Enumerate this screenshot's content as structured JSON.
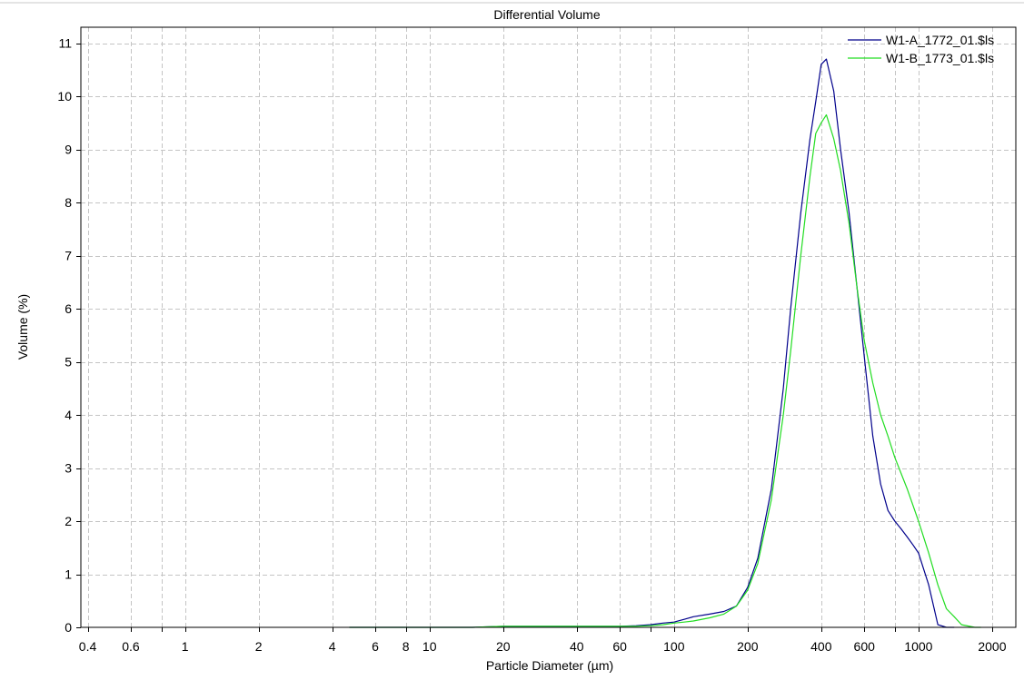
{
  "chart_data": {
    "type": "line",
    "title": "Differential Volume",
    "xlabel": "Particle Diameter (µm)",
    "ylabel": "Volume (%)",
    "x_scale": "log",
    "xlim": [
      0.375,
      2500
    ],
    "ylim": [
      0,
      11.3
    ],
    "x_ticks": [
      0.4,
      0.6,
      1,
      2,
      4,
      6,
      8,
      10,
      20,
      40,
      60,
      100,
      200,
      400,
      600,
      1000,
      2000
    ],
    "x_tick_labels": [
      "0.4",
      "0.6",
      "1",
      "2",
      "4",
      "6",
      "8",
      "10",
      "20",
      "40",
      "60",
      "100",
      "200",
      "400",
      "600",
      "1000",
      "2000"
    ],
    "x_gridlines": [
      0.4,
      0.6,
      0.8,
      1,
      2,
      4,
      6,
      8,
      10,
      20,
      40,
      60,
      80,
      100,
      200,
      400,
      600,
      800,
      1000,
      2000
    ],
    "y_ticks": [
      0,
      1,
      2,
      3,
      4,
      5,
      6,
      7,
      8,
      9,
      10,
      11
    ],
    "grid": true,
    "legend_position": "top-right",
    "series": [
      {
        "name": "W1-A_1772_01.$ls",
        "color": "#00008b",
        "x": [
          4.7,
          10,
          15,
          20,
          30,
          40,
          50,
          60,
          70,
          80,
          90,
          100,
          110,
          120,
          140,
          160,
          180,
          200,
          220,
          250,
          280,
          300,
          330,
          360,
          380,
          400,
          420,
          450,
          480,
          520,
          560,
          600,
          650,
          700,
          750,
          800,
          850,
          900,
          950,
          1000,
          1100,
          1200,
          1300,
          1400
        ],
        "y": [
          0.0,
          0.0,
          0.0,
          0.02,
          0.02,
          0.02,
          0.02,
          0.02,
          0.03,
          0.05,
          0.08,
          0.1,
          0.15,
          0.2,
          0.25,
          0.3,
          0.4,
          0.75,
          1.3,
          2.6,
          4.5,
          6.0,
          7.8,
          9.2,
          9.9,
          10.6,
          10.7,
          10.1,
          9.0,
          7.8,
          6.4,
          5.1,
          3.6,
          2.7,
          2.2,
          2.0,
          1.85,
          1.7,
          1.55,
          1.4,
          0.8,
          0.05,
          0.0,
          0.0
        ]
      },
      {
        "name": "W1-B_1773_01.$ls",
        "color": "#22dd22",
        "x": [
          4.7,
          10,
          15,
          20,
          30,
          40,
          50,
          60,
          70,
          80,
          90,
          100,
          110,
          120,
          140,
          160,
          180,
          200,
          220,
          250,
          280,
          300,
          330,
          360,
          380,
          400,
          420,
          450,
          480,
          520,
          560,
          600,
          650,
          700,
          750,
          800,
          900,
          1000,
          1100,
          1200,
          1300,
          1400,
          1500,
          1700,
          1800
        ],
        "y": [
          0.0,
          0.0,
          0.0,
          0.02,
          0.02,
          0.02,
          0.02,
          0.02,
          0.02,
          0.03,
          0.05,
          0.08,
          0.1,
          0.12,
          0.18,
          0.25,
          0.4,
          0.7,
          1.2,
          2.4,
          4.0,
          5.2,
          7.0,
          8.5,
          9.3,
          9.5,
          9.65,
          9.2,
          8.6,
          7.6,
          6.4,
          5.4,
          4.6,
          4.0,
          3.6,
          3.2,
          2.6,
          2.0,
          1.4,
          0.8,
          0.35,
          0.2,
          0.05,
          0.0,
          0.0
        ]
      }
    ]
  }
}
